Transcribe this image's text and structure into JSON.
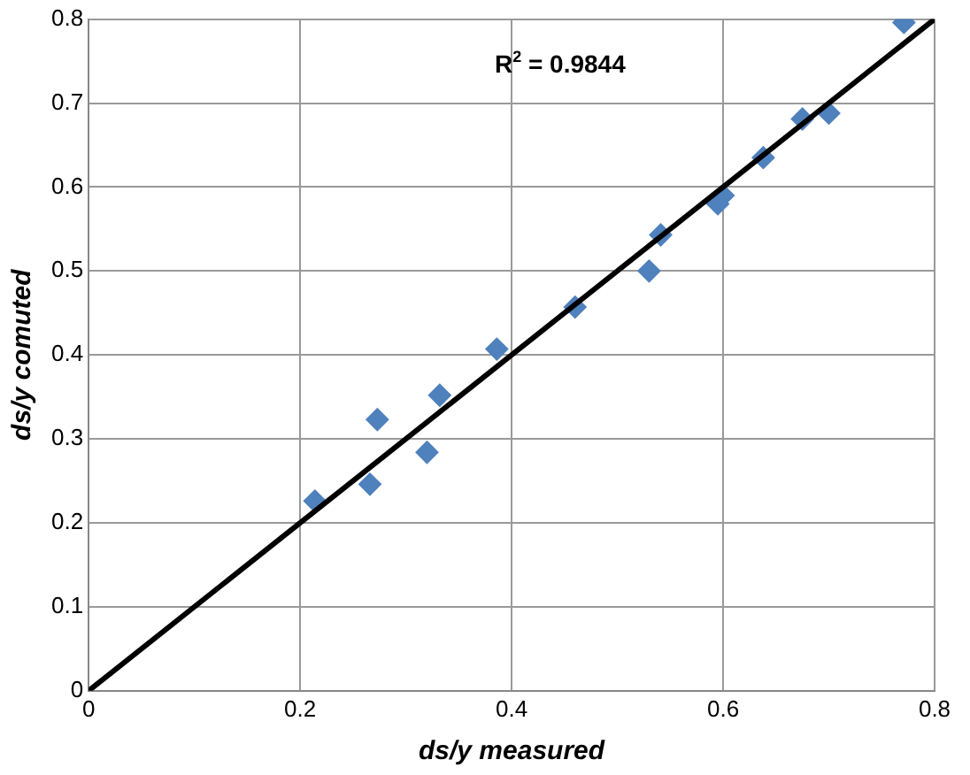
{
  "chart_data": {
    "type": "scatter",
    "xlabel": "ds/y measured",
    "ylabel": "ds/y comuted",
    "xlim": [
      0,
      0.8
    ],
    "ylim": [
      0,
      0.8
    ],
    "xticks": [
      0,
      0.2,
      0.4,
      0.6,
      0.8
    ],
    "yticks": [
      0,
      0.1,
      0.2,
      0.3,
      0.4,
      0.5,
      0.6,
      0.7,
      0.8
    ],
    "grid": true,
    "legend": false,
    "annotations": [
      "R$^{2}$ = 0.9844"
    ],
    "series": [
      {
        "marker": "diamond",
        "color": "#4f81bd",
        "x": [
          0.214,
          0.266,
          0.273,
          0.32,
          0.332,
          0.386,
          0.46,
          0.53,
          0.541,
          0.595,
          0.6,
          0.638,
          0.675,
          0.7,
          0.771
        ],
        "values": [
          0.226,
          0.246,
          0.323,
          0.284,
          0.352,
          0.407,
          0.457,
          0.5,
          0.543,
          0.58,
          0.59,
          0.635,
          0.681,
          0.688,
          0.796
        ]
      },
      {
        "type": "line",
        "marker": "none",
        "color": "#000000",
        "x": [
          0,
          0.8
        ],
        "values": [
          0,
          0.8
        ]
      }
    ]
  }
}
